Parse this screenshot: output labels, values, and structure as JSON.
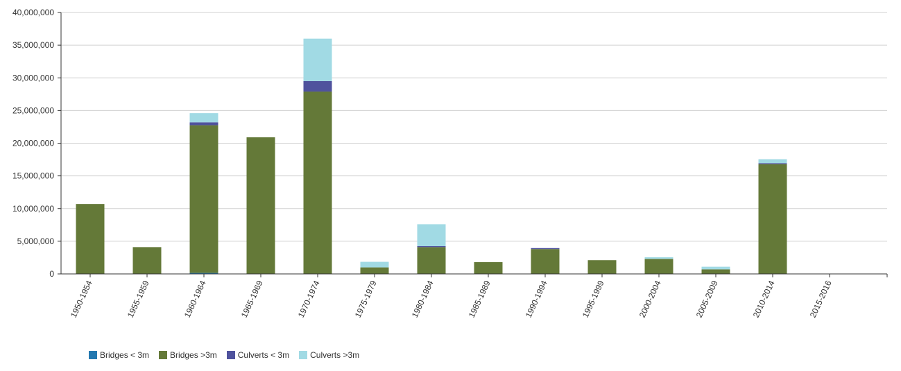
{
  "chart_data": {
    "type": "bar",
    "stacked": true,
    "categories": [
      "1950-1954",
      "1955-1959",
      "1960-1964",
      "1965-1969",
      "1970-1974",
      "1975-1979",
      "1980-1984",
      "1985-1989",
      "1990-1994",
      "1995-1999",
      "2000-2004",
      "2005-2009",
      "2010-2014",
      "2015-2016"
    ],
    "series": [
      {
        "name": "Bridges < 3m",
        "color": "#2378b0",
        "values": [
          0,
          0,
          150000,
          0,
          0,
          0,
          0,
          0,
          0,
          0,
          0,
          0,
          0,
          0
        ]
      },
      {
        "name": "Bridges >3m",
        "color": "#647938",
        "values": [
          10700000,
          4100000,
          22600000,
          20900000,
          27900000,
          1000000,
          4100000,
          1800000,
          3800000,
          2100000,
          2300000,
          700000,
          16800000,
          0
        ]
      },
      {
        "name": "Culverts < 3m",
        "color": "#4f529d",
        "values": [
          0,
          0,
          450000,
          0,
          1600000,
          0,
          150000,
          0,
          150000,
          0,
          0,
          0,
          150000,
          0
        ]
      },
      {
        "name": "Culverts >3m",
        "color": "#a1dae4",
        "values": [
          0,
          0,
          1400000,
          0,
          6500000,
          850000,
          3350000,
          0,
          0,
          0,
          250000,
          400000,
          600000,
          0
        ]
      }
    ],
    "ylim": [
      0,
      40000000
    ],
    "yticks": [
      "0",
      "5,000,000",
      "10,000,000",
      "15,000,000",
      "20,000,000",
      "25,000,000",
      "30,000,000",
      "35,000,000",
      "40,000,000"
    ],
    "grid": true,
    "legend_position": "bottom-left",
    "title": "",
    "xlabel": "",
    "ylabel": ""
  }
}
